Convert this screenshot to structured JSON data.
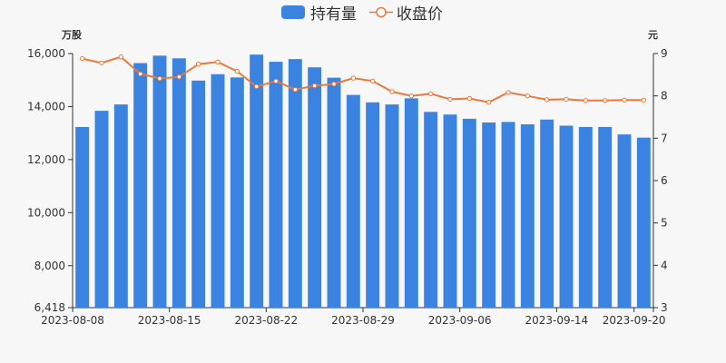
{
  "chart_data": {
    "type": "bar+line",
    "legend": {
      "bar_label": "持有量",
      "line_label": "收盘价",
      "placement": "top-center"
    },
    "left_axis": {
      "unit": "万股",
      "min": 6418,
      "max": 16000,
      "ticks": [
        "6,418",
        "8,000",
        "10,000",
        "12,000",
        "14,000",
        "16,000"
      ],
      "tick_values": [
        6418,
        8000,
        10000,
        12000,
        14000,
        16000
      ]
    },
    "right_axis": {
      "unit": "元",
      "min": 3,
      "max": 9,
      "ticks": [
        "3",
        "4",
        "5",
        "6",
        "7",
        "8",
        "9"
      ],
      "tick_values": [
        3,
        4,
        5,
        6,
        7,
        8,
        9
      ]
    },
    "x_tick_labels": [
      "2023-08-08",
      "2023-08-15",
      "2023-08-22",
      "2023-08-29",
      "2023-09-06",
      "2023-09-14",
      "2023-09-20"
    ],
    "x_tick_indices": [
      0,
      5,
      10,
      15,
      20,
      25,
      29
    ],
    "categories": [
      "2023-08-08",
      "2023-08-09",
      "2023-08-10",
      "2023-08-11",
      "2023-08-14",
      "2023-08-15",
      "2023-08-16",
      "2023-08-17",
      "2023-08-18",
      "2023-08-21",
      "2023-08-22",
      "2023-08-23",
      "2023-08-24",
      "2023-08-25",
      "2023-08-28",
      "2023-08-29",
      "2023-08-30",
      "2023-08-31",
      "2023-09-01",
      "2023-09-04",
      "2023-09-06",
      "2023-09-07",
      "2023-09-08",
      "2023-09-11",
      "2023-09-12",
      "2023-09-14",
      "2023-09-15",
      "2023-09-18",
      "2023-09-19",
      "2023-09-20"
    ],
    "series": [
      {
        "name": "持有量",
        "type": "bar",
        "axis": "left",
        "values": [
          13230,
          13840,
          14080,
          15640,
          15920,
          15820,
          14980,
          15220,
          15100,
          15960,
          15690,
          15790,
          15480,
          15090,
          14440,
          14160,
          14080,
          14310,
          13800,
          13700,
          13540,
          13400,
          13420,
          13330,
          13510,
          13280,
          13230,
          13230,
          12950,
          12830
        ]
      },
      {
        "name": "收盘价",
        "type": "line",
        "axis": "right",
        "values": [
          8.88,
          8.78,
          8.92,
          8.52,
          8.41,
          8.45,
          8.75,
          8.8,
          8.58,
          8.22,
          8.35,
          8.15,
          8.24,
          8.28,
          8.42,
          8.35,
          8.1,
          8.0,
          8.05,
          7.92,
          7.94,
          7.85,
          8.08,
          8.0,
          7.91,
          7.92,
          7.89,
          7.89,
          7.9,
          7.9
        ]
      }
    ],
    "colors": {
      "bar": "#3a83e1",
      "line": "#e8793a",
      "axis": "#333333",
      "grid": "none"
    },
    "grid": false
  }
}
